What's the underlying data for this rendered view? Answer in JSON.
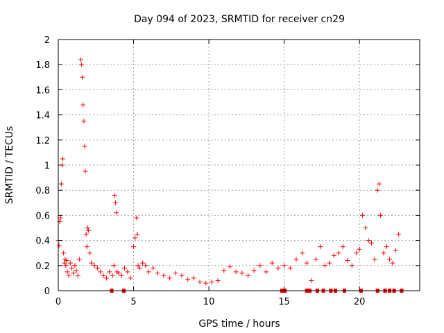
{
  "chart_data": {
    "type": "scatter",
    "title": "Day 094 of 2023, SRMTID for receiver cn29",
    "xlabel": "GPS time / hours",
    "ylabel": "SRMTID / TECUs",
    "xlim": [
      0,
      24
    ],
    "ylim": [
      0,
      2
    ],
    "xticks": [
      0,
      5,
      10,
      15,
      20
    ],
    "yticks": [
      0,
      0.2,
      0.4,
      0.6,
      0.8,
      1,
      1.2,
      1.4,
      1.6,
      1.8,
      2
    ],
    "xtick_labels": [
      "0",
      "5",
      "10",
      "15",
      "20"
    ],
    "ytick_labels": [
      "0",
      "0.2",
      "0.4",
      "0.6",
      "0.8",
      "1",
      "1.2",
      "1.4",
      "1.6",
      "1.8",
      "2"
    ],
    "grid": true,
    "marker": "+",
    "color": "#ff0000",
    "series": [
      {
        "name": "SRMTID",
        "x": [
          0.0,
          0.05,
          0.1,
          0.15,
          0.2,
          0.25,
          0.3,
          0.35,
          0.4,
          0.45,
          0.5,
          0.55,
          0.6,
          0.7,
          0.8,
          0.9,
          1.0,
          1.1,
          1.2,
          1.3,
          1.4,
          1.5,
          1.55,
          1.6,
          1.65,
          1.7,
          1.75,
          1.8,
          1.85,
          1.9,
          1.95,
          2.0,
          2.1,
          2.2,
          2.4,
          2.6,
          2.8,
          3.0,
          3.2,
          3.4,
          3.6,
          3.7,
          3.75,
          3.8,
          3.85,
          3.9,
          4.0,
          4.2,
          4.4,
          4.6,
          4.8,
          5.0,
          5.1,
          5.2,
          5.25,
          5.3,
          5.4,
          5.6,
          5.8,
          6.0,
          6.3,
          6.6,
          7.0,
          7.4,
          7.8,
          8.2,
          8.6,
          9.0,
          9.4,
          9.8,
          10.2,
          10.6,
          11.0,
          11.4,
          11.8,
          12.2,
          12.6,
          13.0,
          13.4,
          13.8,
          14.2,
          14.6,
          15.0,
          15.4,
          15.8,
          16.2,
          16.5,
          16.8,
          17.1,
          17.4,
          17.7,
          18.0,
          18.3,
          18.6,
          18.9,
          19.2,
          19.5,
          19.8,
          20.0,
          20.2,
          20.4,
          20.6,
          20.8,
          21.0,
          21.2,
          21.3,
          21.4,
          21.6,
          21.8,
          22.0,
          22.2,
          22.4,
          22.6
        ],
        "y": [
          0.4,
          0.36,
          0.55,
          0.58,
          0.85,
          1.0,
          1.05,
          0.3,
          0.22,
          0.25,
          0.2,
          0.24,
          0.15,
          0.12,
          0.22,
          0.18,
          0.14,
          0.2,
          0.16,
          0.12,
          0.25,
          1.84,
          1.8,
          1.7,
          1.48,
          1.35,
          1.15,
          0.95,
          0.45,
          0.35,
          0.5,
          0.48,
          0.3,
          0.22,
          0.2,
          0.18,
          0.15,
          0.12,
          0.1,
          0.15,
          0.12,
          0.2,
          0.76,
          0.7,
          0.62,
          0.15,
          0.14,
          0.12,
          0.18,
          0.15,
          0.1,
          0.35,
          0.42,
          0.58,
          0.45,
          0.2,
          0.18,
          0.22,
          0.2,
          0.15,
          0.18,
          0.14,
          0.12,
          0.1,
          0.14,
          0.12,
          0.09,
          0.1,
          0.07,
          0.06,
          0.07,
          0.08,
          0.16,
          0.19,
          0.15,
          0.14,
          0.12,
          0.16,
          0.2,
          0.15,
          0.22,
          0.18,
          0.2,
          0.18,
          0.25,
          0.3,
          0.22,
          0.08,
          0.25,
          0.35,
          0.2,
          0.22,
          0.28,
          0.3,
          0.35,
          0.24,
          0.2,
          0.3,
          0.33,
          0.6,
          0.5,
          0.4,
          0.38,
          0.25,
          0.8,
          0.85,
          0.6,
          0.3,
          0.35,
          0.25,
          0.22,
          0.32,
          0.45
        ]
      }
    ],
    "zero_flags_x": [
      3.55,
      4.35,
      14.85,
      15.05,
      16.5,
      16.7,
      17.2,
      17.6,
      18.1,
      18.4,
      19.0,
      20.1,
      21.2,
      21.7,
      22.0,
      22.3,
      22.8
    ]
  }
}
